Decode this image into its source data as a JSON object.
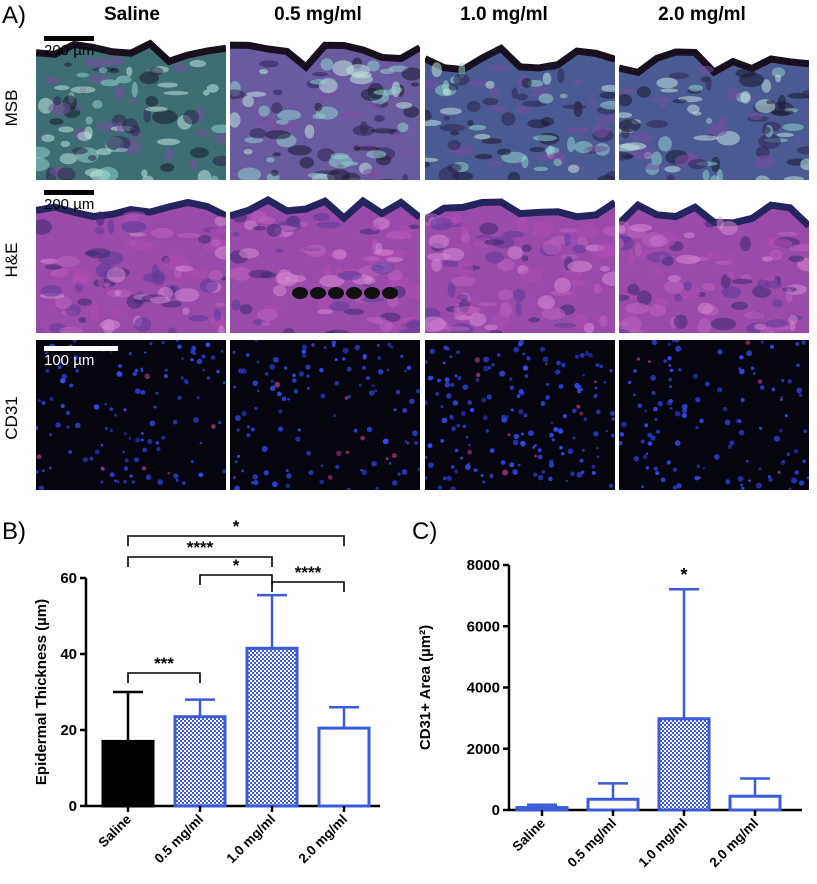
{
  "panel_a": {
    "letter": "A)",
    "columns": [
      "Saline",
      "0.5 mg/ml",
      "1.0 mg/ml",
      "2.0 mg/ml"
    ],
    "rows": [
      "MSB",
      "H&E",
      "CD31"
    ],
    "scale_bars": [
      "200 µm",
      "200 µm",
      "100 µm"
    ]
  },
  "panel_b": {
    "letter": "B)"
  },
  "panel_c": {
    "letter": "C)"
  },
  "chart_data": [
    {
      "type": "bar",
      "panel": "B)",
      "categories": [
        "Saline",
        "0.5 mg/ml",
        "1.0 mg/ml",
        "2.0 mg/ml"
      ],
      "values": [
        17,
        23.5,
        41.5,
        20.5
      ],
      "errors": [
        13,
        4.5,
        14,
        5.5
      ],
      "ylabel": "Epidermal Thickness (µm)",
      "ylim": [
        0,
        60
      ],
      "yticks": [
        "0",
        "20",
        "40",
        "60"
      ],
      "fills": [
        "solid-black",
        "blue-hatched",
        "blue-hatched",
        "white"
      ],
      "significance": [
        {
          "from": "Saline",
          "to": "2.0 mg/ml",
          "label": "*"
        },
        {
          "from": "Saline",
          "to": "1.0 mg/ml",
          "label": "****"
        },
        {
          "from": "0.5 mg/ml",
          "to": "1.0 mg/ml",
          "label": "*"
        },
        {
          "from": "1.0 mg/ml",
          "to": "2.0 mg/ml",
          "label": "****"
        },
        {
          "from": "Saline",
          "to": "0.5 mg/ml",
          "label": "***"
        }
      ]
    },
    {
      "type": "bar",
      "panel": "C)",
      "categories": [
        "Saline",
        "0.5 mg/ml",
        "1.0 mg/ml",
        "2.0 mg/ml"
      ],
      "values": [
        80,
        350,
        2980,
        450
      ],
      "errors": [
        90,
        520,
        4230,
        580
      ],
      "ylabel": "CD31+ Area (µm²)",
      "ylim": [
        0,
        8000
      ],
      "yticks": [
        "0",
        "2000",
        "4000",
        "6000",
        "8000"
      ],
      "fills": [
        "white",
        "white",
        "blue-hatched",
        "white"
      ],
      "annotations": [
        {
          "category": "1.0 mg/ml",
          "label": "*"
        }
      ]
    }
  ],
  "colors": {
    "bar_blue": "#3b5bdb",
    "black": "#000000",
    "msb_bg": "#ffffff",
    "cd31_bg": "#050510"
  }
}
